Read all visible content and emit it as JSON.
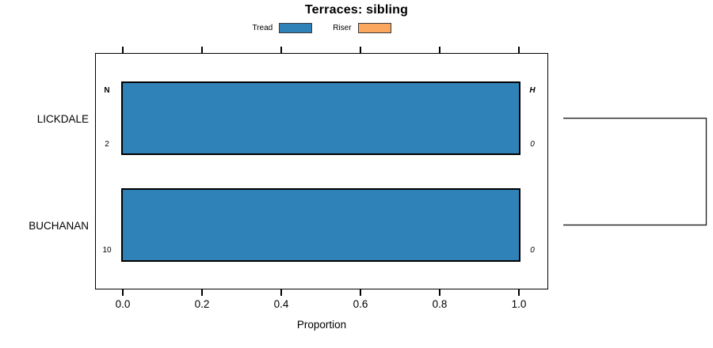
{
  "title": "Terraces: sibling",
  "legend": {
    "position": "top",
    "items": [
      {
        "label": "Tread",
        "color": "#2E82B8"
      },
      {
        "label": "Riser",
        "color": "#FBA75E"
      }
    ]
  },
  "chart_data": {
    "type": "bar",
    "orientation": "horizontal",
    "title": "Terraces: sibling",
    "xlabel": "Proportion",
    "ylabel": "",
    "xlim": [
      0.0,
      1.0
    ],
    "x_tick_labels": [
      "0.0",
      "0.2",
      "0.4",
      "0.6",
      "0.8",
      "1.0"
    ],
    "grid": false,
    "legend_position": "top",
    "categories": [
      "LICKDALE",
      "BUCHANAN"
    ],
    "series": [
      {
        "name": "Tread",
        "color": "#2E82B8",
        "values": [
          1.0,
          1.0
        ]
      },
      {
        "name": "Riser",
        "color": "#FBA75E",
        "values": [
          0.0,
          0.0
        ]
      }
    ],
    "rows": [
      {
        "category": "LICKDALE",
        "col_header_left": "N",
        "col_header_right": "H",
        "n_count": "2",
        "h_count": "0"
      },
      {
        "category": "BUCHANAN",
        "n_count": "10",
        "h_count": "0"
      }
    ],
    "right_link_connects": [
      "LICKDALE",
      "BUCHANAN"
    ]
  },
  "colors": {
    "bar_fill": "#2E82B8",
    "riser_fill": "#FBA75E",
    "bar_border": "#000000",
    "axis": "#000000",
    "bracket": "#2a2a2a"
  }
}
